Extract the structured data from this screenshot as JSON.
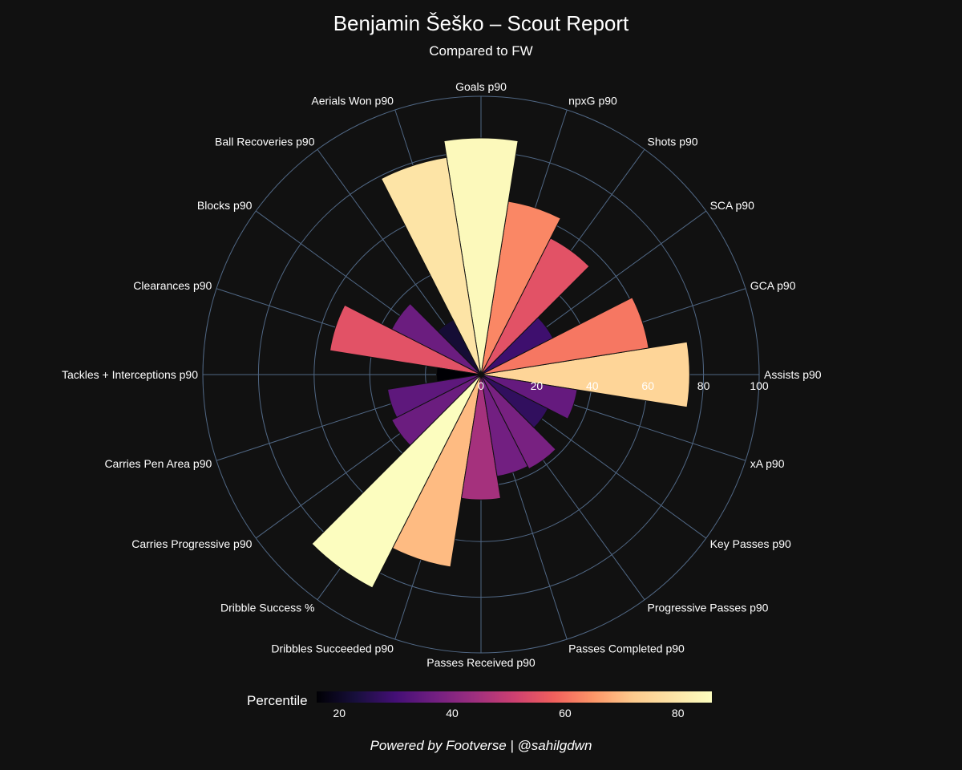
{
  "chart_data": {
    "type": "polar-bar",
    "title": "Benjamin Šeško – Scout Report",
    "subtitle": "Compared to FW",
    "footer": "Powered by Footverse | @sahilgdwn",
    "radial_axis": {
      "range": [
        0,
        100
      ],
      "ticks": [
        "0",
        "20",
        "40",
        "60",
        "80",
        "100"
      ],
      "tick_values": [
        0,
        20,
        40,
        60,
        80,
        100
      ]
    },
    "colorbar": {
      "title": "Percentile",
      "range": [
        16,
        86
      ],
      "ticks": [
        "20",
        "40",
        "60",
        "80"
      ],
      "tick_values": [
        20,
        40,
        60,
        80
      ]
    },
    "categories": [
      "Assists p90",
      "GCA p90",
      "SCA p90",
      "Shots p90",
      "npxG p90",
      "Goals p90",
      "Aerials Won p90",
      "Ball Recoveries p90",
      "Blocks p90",
      "Clearances p90",
      "Tackles + Interceptions p90",
      "Carries Pen Area p90",
      "Carries Progressive p90",
      "Dribble Success %",
      "Dribbles Succeeded p90",
      "Passes Received p90",
      "Passes Completed p90",
      "Progressive Passes p90",
      "Key Passes p90",
      "xA p90"
    ],
    "values": [
      75,
      61,
      29,
      55,
      63,
      85,
      79,
      22,
      36,
      55,
      16,
      34,
      36,
      86,
      70,
      45,
      37,
      38,
      27,
      35
    ]
  }
}
